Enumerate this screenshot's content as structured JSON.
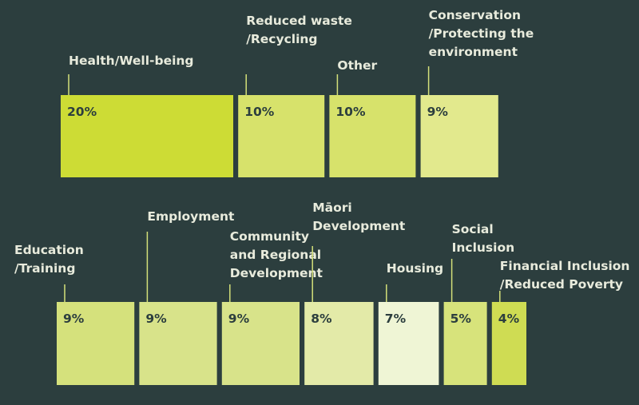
{
  "chart_data": {
    "type": "bar",
    "categories": [
      "Health/Well-being",
      "Reduced waste\n/Recycling",
      "Other",
      "Conservation\n/Protecting the\nenvironment",
      "Education\n/Training",
      "Employment",
      "Community\nand Regional\nDevelopment",
      "Māori\nDevelopment",
      "Housing",
      "Social\nInclusion",
      "Financial Inclusion\n/Reduced Poverty"
    ],
    "values": [
      20,
      10,
      10,
      9,
      9,
      9,
      9,
      8,
      7,
      5,
      4
    ],
    "value_labels": [
      "20%",
      "10%",
      "10%",
      "9%",
      "9%",
      "9%",
      "9%",
      "8%",
      "7%",
      "5%",
      "4%"
    ],
    "unit": "%",
    "colors": [
      "#cddc35",
      "#d7e26b",
      "#d7e26b",
      "#e2e98d",
      "#d5e17c",
      "#d8e38a",
      "#d8e38a",
      "#e3eaa8",
      "#eff5d5",
      "#d7e37b",
      "#cfdc53"
    ],
    "title": "",
    "xlabel": "",
    "ylabel": ""
  }
}
